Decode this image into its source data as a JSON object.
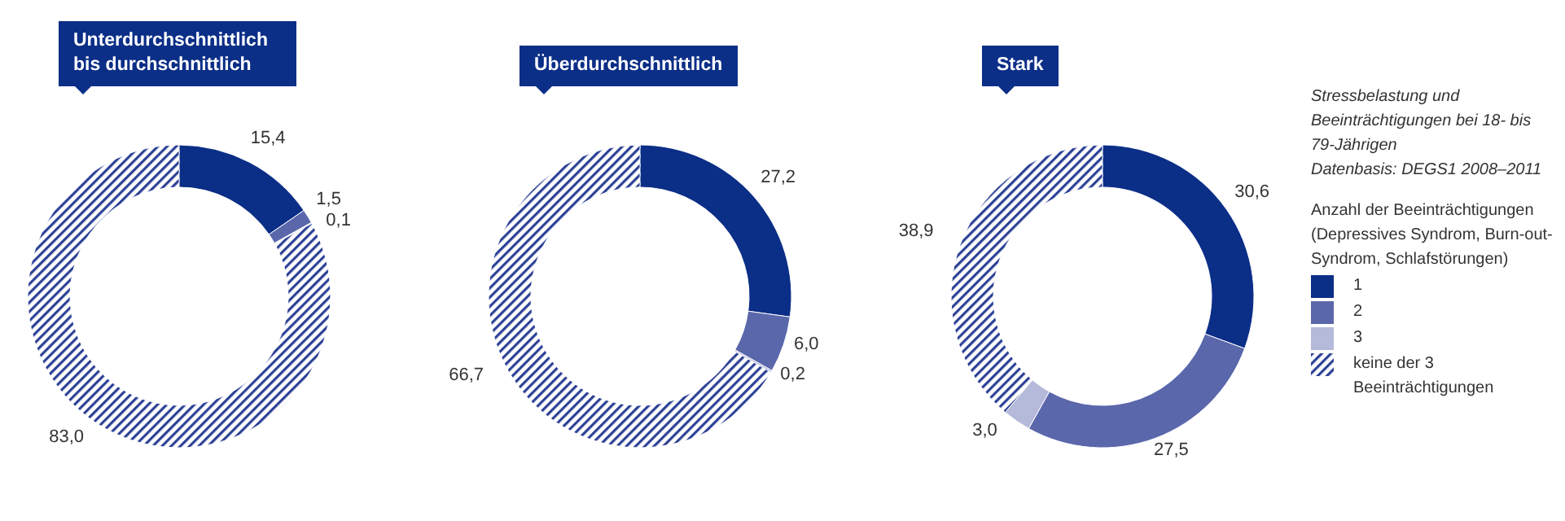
{
  "chart_data": [
    {
      "type": "donut",
      "title": "Unterdurchschnittlich bis durchschnittlich",
      "categories": [
        null,
        null,
        null,
        null
      ],
      "values": [
        15.4,
        1.5,
        0.1,
        83.0
      ],
      "value_labels": [
        "15,4",
        "1,5",
        "0,1",
        "83,0"
      ],
      "colors": [
        "#0b2e87",
        "#5a67ab",
        "#b5b9da",
        "#2d4196"
      ]
    },
    {
      "type": "donut",
      "title": "Überdurchschnittlich",
      "categories": [
        null,
        null,
        null,
        null
      ],
      "values": [
        27.2,
        6.0,
        0.2,
        66.7
      ],
      "value_labels": [
        "27,2",
        "6,0",
        "0,2",
        "66,7"
      ],
      "colors": [
        "#0b2e87",
        "#5a67ab",
        "#b5b9da",
        "#2d4196"
      ]
    },
    {
      "type": "donut",
      "title": "Stark",
      "categories": [
        "1",
        "2",
        "3",
        "keine der 3 Beeinträchtigungen"
      ],
      "values": [
        30.6,
        27.5,
        3.0,
        38.9
      ],
      "value_labels": [
        "30,6",
        "27,5",
        "3,0",
        "38,9"
      ],
      "colors": [
        "#0b2e87",
        "#5a67ab",
        "#b5b9da",
        "#2d4196"
      ],
      "legend": "right",
      "legend_title": "Anzahl der Beeinträchtigungen (Depressives Syndrom, Burn-out-Syndrom, Schlafstörungen)",
      "annotations": [
        "Stressbelastung und Beeinträchtigungen bei 18- bis 79-Jährigen",
        "Datenbasis: DEGS1 2008–2011"
      ]
    }
  ]
}
